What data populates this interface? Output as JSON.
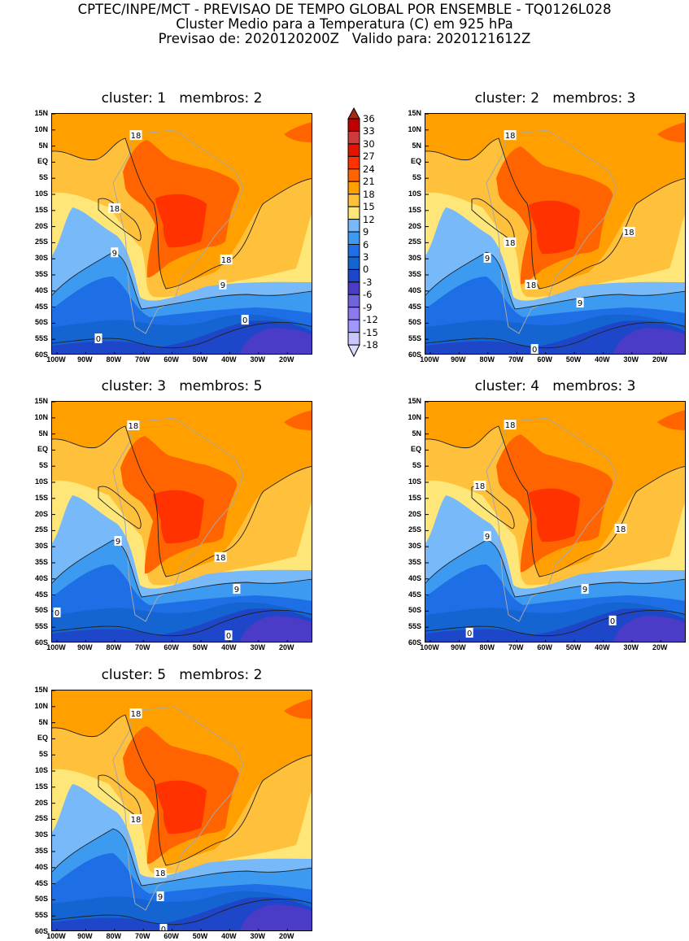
{
  "header": {
    "line1": "CPTEC/INPE/MCT - PREVISAO DE TEMPO GLOBAL POR ENSEMBLE - TQ0126L028",
    "line2": "Cluster Medio para a Temperatura (C) em 925 hPa",
    "line3": "Previsao de: 2020120200Z   Valido para: 2020121612Z"
  },
  "lat_labels": [
    "15N",
    "10N",
    "5N",
    "EQ",
    "5S",
    "10S",
    "15S",
    "20S",
    "25S",
    "30S",
    "35S",
    "40S",
    "45S",
    "50S",
    "55S",
    "60S"
  ],
  "lon_labels": [
    "100W",
    "90W",
    "80W",
    "70W",
    "60W",
    "50W",
    "40W",
    "30W",
    "20W"
  ],
  "colorbar": {
    "labels": [
      "36",
      "33",
      "30",
      "27",
      "24",
      "21",
      "18",
      "15",
      "12",
      "9",
      "6",
      "3",
      "0",
      "-3",
      "-6",
      "-9",
      "-12",
      "-15",
      "-18"
    ],
    "colors": [
      "#a52a10",
      "#c00000",
      "#cc3c3c",
      "#e01400",
      "#ff3200",
      "#ff6400",
      "#ffa000",
      "#ffc03c",
      "#ffe678",
      "#78b9fa",
      "#3c9af0",
      "#1e6ee6",
      "#1464d2",
      "#1e46c8",
      "#4b3cc8",
      "#7064dc",
      "#8c78f0",
      "#a096ff",
      "#c8c8ff",
      "#dcdcff"
    ]
  },
  "panels": [
    {
      "title": "cluster: 1   membros: 2",
      "labels": [
        {
          "t": "18",
          "lon": -72.6,
          "lat": 8.4
        },
        {
          "t": "18",
          "lon": -80,
          "lat": -14.3
        },
        {
          "t": "9",
          "lon": -80,
          "lat": -28
        },
        {
          "t": "18",
          "lon": -41.2,
          "lat": -30.2
        },
        {
          "t": "9",
          "lon": -42.4,
          "lat": -38
        },
        {
          "t": "0",
          "lon": -34.7,
          "lat": -48.9
        },
        {
          "t": "0",
          "lon": -85.6,
          "lat": -54.7
        }
      ]
    },
    {
      "title": "cluster: 2   membros: 3",
      "labels": [
        {
          "t": "18",
          "lon": -72.3,
          "lat": 8.4
        },
        {
          "t": "18",
          "lon": -31,
          "lat": -21.6
        },
        {
          "t": "18",
          "lon": -72.3,
          "lat": -24.9
        },
        {
          "t": "9",
          "lon": -80.2,
          "lat": -29.7
        },
        {
          "t": "18",
          "lon": -65,
          "lat": -38
        },
        {
          "t": "9",
          "lon": -48,
          "lat": -43.6
        },
        {
          "t": "0",
          "lon": -63.8,
          "lat": -58
        }
      ]
    },
    {
      "title": "cluster: 3   membros: 5",
      "labels": [
        {
          "t": "18",
          "lon": -73.5,
          "lat": 7.7
        },
        {
          "t": "9",
          "lon": -78.8,
          "lat": -28.2
        },
        {
          "t": "18",
          "lon": -43.2,
          "lat": -33.2
        },
        {
          "t": "9",
          "lon": -37.6,
          "lat": -43.1
        },
        {
          "t": "0",
          "lon": -100,
          "lat": -50.4
        },
        {
          "t": "0",
          "lon": -40.4,
          "lat": -57.5
        }
      ]
    },
    {
      "title": "cluster: 4   membros: 3",
      "labels": [
        {
          "t": "18",
          "lon": -72.3,
          "lat": 7.9
        },
        {
          "t": "18",
          "lon": -82.8,
          "lat": -11
        },
        {
          "t": "9",
          "lon": -80.2,
          "lat": -26.7
        },
        {
          "t": "18",
          "lon": -33.9,
          "lat": -24.4
        },
        {
          "t": "9",
          "lon": -46.3,
          "lat": -43.1
        },
        {
          "t": "0",
          "lon": -36.7,
          "lat": -52.9
        },
        {
          "t": "0",
          "lon": -86.4,
          "lat": -56.7
        }
      ]
    },
    {
      "title": "cluster: 5   membros: 2",
      "labels": [
        {
          "t": "18",
          "lon": -72.6,
          "lat": 7.9
        },
        {
          "t": "18",
          "lon": -72.6,
          "lat": -24.9
        },
        {
          "t": "18",
          "lon": -64.1,
          "lat": -41.6
        },
        {
          "t": "9",
          "lon": -64.1,
          "lat": -48.9
        },
        {
          "t": "0",
          "lon": -63,
          "lat": -59
        }
      ]
    }
  ]
}
